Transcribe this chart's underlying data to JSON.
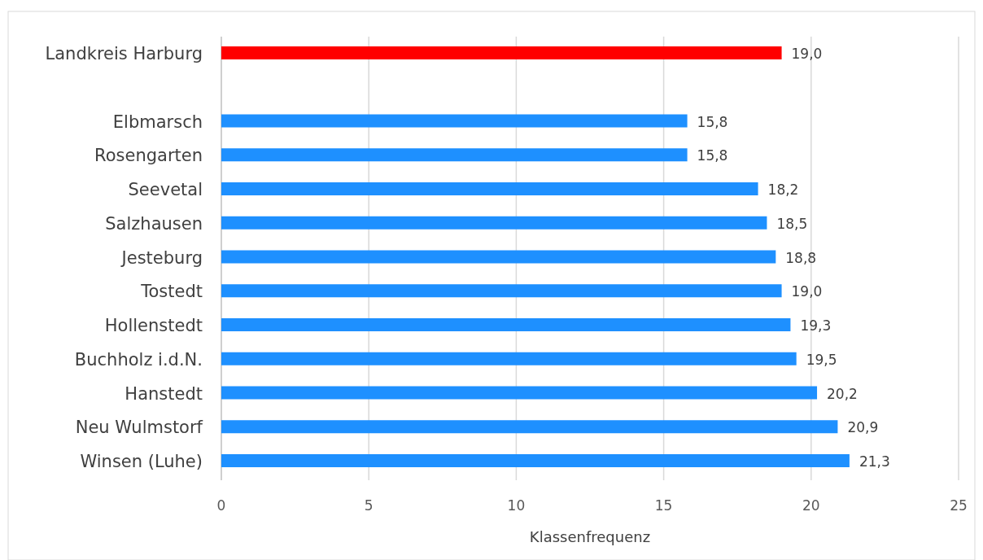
{
  "chart_data": {
    "type": "bar",
    "orientation": "horizontal",
    "xlabel": "Klassenfrequenz",
    "categories": [
      "Landkreis Harburg",
      null,
      "Elbmarsch",
      "Rosengarten",
      "Seevetal",
      "Salzhausen",
      "Jesteburg",
      "Tostedt",
      "Hollenstedt",
      "Buchholz i.d.N.",
      "Hanstedt",
      "Neu Wulmstorf",
      "Winsen (Luhe)"
    ],
    "values": [
      19.0,
      null,
      15.8,
      15.8,
      18.2,
      18.5,
      18.8,
      19.0,
      19.3,
      19.5,
      20.2,
      20.9,
      21.3
    ],
    "value_labels": [
      "19,0",
      null,
      "15,8",
      "15,8",
      "18,2",
      "18,5",
      "18,8",
      "19,0",
      "19,3",
      "19,5",
      "20,2",
      "20,9",
      "21,3"
    ],
    "colors": [
      "#ff0000",
      null,
      "#1e90ff",
      "#1e90ff",
      "#1e90ff",
      "#1e90ff",
      "#1e90ff",
      "#1e90ff",
      "#1e90ff",
      "#1e90ff",
      "#1e90ff",
      "#1e90ff",
      "#1e90ff"
    ],
    "xlim": [
      0,
      25
    ],
    "xticks": [
      0,
      5,
      10,
      15,
      20,
      25
    ],
    "grid": "x"
  }
}
